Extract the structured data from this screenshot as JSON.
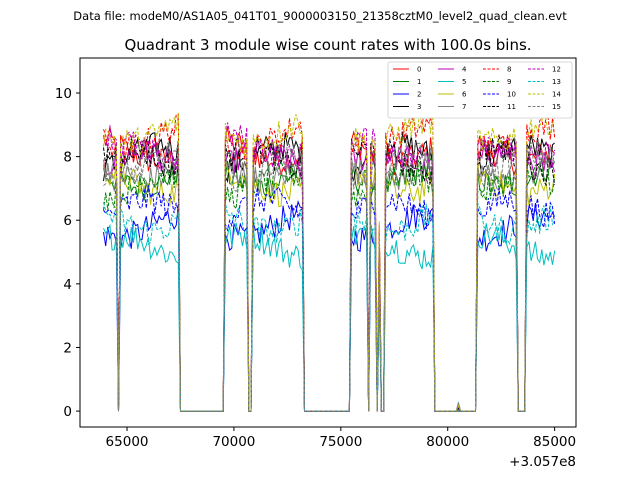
{
  "suptitle": "Data file: modeM0/AS1A05_041T01_9000003150_21358cztM0_level2_quad_clean.evt",
  "chart_data": {
    "type": "line",
    "title": "Quadrant 3 module wise count rates with 100.0s bins.",
    "xlabel": "",
    "ylabel": "",
    "x_offset_label": "+3.057e8",
    "xlim": [
      62800,
      86000
    ],
    "ylim": [
      -0.5,
      11.1
    ],
    "xticks": [
      65000,
      70000,
      75000,
      80000,
      85000
    ],
    "xtick_labels": [
      "65000",
      "70000",
      "75000",
      "80000",
      "85000"
    ],
    "yticks": [
      0,
      2,
      4,
      6,
      8,
      10
    ],
    "ytick_labels": [
      "0",
      "2",
      "4",
      "6",
      "8",
      "10"
    ],
    "legend_position": "top-right",
    "bin_width": 100,
    "x_start": 63900,
    "x_end": 85000,
    "segments": [
      {
        "start": 63900,
        "end": 64500
      },
      {
        "start": 64700,
        "end": 67400
      },
      {
        "start": 69600,
        "end": 70600
      },
      {
        "start": 70900,
        "end": 73200
      },
      {
        "start": 75500,
        "end": 76200
      },
      {
        "start": 76400,
        "end": 76600
      },
      {
        "start": 77100,
        "end": 78800
      },
      {
        "start": 78800,
        "end": 79300
      },
      {
        "start": 81400,
        "end": 83200
      },
      {
        "start": 83700,
        "end": 85000
      }
    ],
    "mid_points": [
      {
        "x": 76350,
        "frac": 0.35
      },
      {
        "x": 76500,
        "frac": 0.55
      },
      {
        "x": 76800,
        "frac": 0.68
      },
      {
        "x": 77300,
        "frac": 0.7
      },
      {
        "x": 77700,
        "frac": 0.6
      },
      {
        "x": 78000,
        "frac": 0.45
      },
      {
        "x": 80500,
        "frac": 0.0
      }
    ],
    "series": [
      {
        "name": "0",
        "color": "#ff0000",
        "dash": "solid",
        "level": 8.2
      },
      {
        "name": "1",
        "color": "#008000",
        "dash": "solid",
        "level": 7.4
      },
      {
        "name": "2",
        "color": "#0000ff",
        "dash": "solid",
        "level": 5.8
      },
      {
        "name": "3",
        "color": "#000000",
        "dash": "solid",
        "level": 8.0
      },
      {
        "name": "4",
        "color": "#bf00bf",
        "dash": "solid",
        "level": 7.8
      },
      {
        "name": "5",
        "color": "#00bfbf",
        "dash": "solid",
        "level": 5.2
      },
      {
        "name": "6",
        "color": "#bfbf00",
        "dash": "solid",
        "level": 7.2
      },
      {
        "name": "7",
        "color": "#808080",
        "dash": "solid",
        "level": 7.6
      },
      {
        "name": "8",
        "color": "#ff0000",
        "dash": "dashed",
        "level": 8.6
      },
      {
        "name": "9",
        "color": "#008000",
        "dash": "dashed",
        "level": 7.1
      },
      {
        "name": "10",
        "color": "#0000ff",
        "dash": "dashed",
        "level": 6.3
      },
      {
        "name": "11",
        "color": "#000000",
        "dash": "dashed",
        "level": 7.9
      },
      {
        "name": "12",
        "color": "#bf00bf",
        "dash": "dashed",
        "level": 8.3
      },
      {
        "name": "13",
        "color": "#00bfbf",
        "dash": "dashed",
        "level": 6.0
      },
      {
        "name": "14",
        "color": "#bfbf00",
        "dash": "dashed",
        "level": 8.8
      },
      {
        "name": "15",
        "color": "#808080",
        "dash": "dashed",
        "level": 7.7
      }
    ]
  }
}
